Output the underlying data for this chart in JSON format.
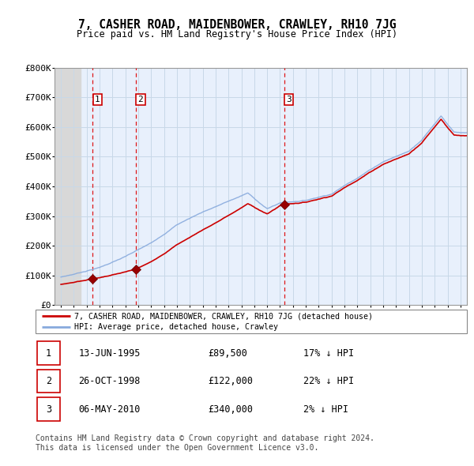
{
  "title": "7, CASHER ROAD, MAIDENBOWER, CRAWLEY, RH10 7JG",
  "subtitle": "Price paid vs. HM Land Registry's House Price Index (HPI)",
  "ylim": [
    0,
    800000
  ],
  "yticks": [
    0,
    100000,
    200000,
    300000,
    400000,
    500000,
    600000,
    700000,
    800000
  ],
  "ytick_labels": [
    "£0",
    "£100K",
    "£200K",
    "£300K",
    "£400K",
    "£500K",
    "£600K",
    "£700K",
    "£800K"
  ],
  "x_start_year": 1993,
  "x_end_year": 2025,
  "sale_times": [
    1995.46,
    1998.82,
    2010.34
  ],
  "sale_prices": [
    89500,
    122000,
    340000
  ],
  "sale_labels": [
    "1",
    "2",
    "3"
  ],
  "legend_line1": "7, CASHER ROAD, MAIDENBOWER, CRAWLEY, RH10 7JG (detached house)",
  "legend_line2": "HPI: Average price, detached house, Crawley",
  "table_rows": [
    [
      "1",
      "13-JUN-1995",
      "£89,500",
      "17% ↓ HPI"
    ],
    [
      "2",
      "26-OCT-1998",
      "£122,000",
      "22% ↓ HPI"
    ],
    [
      "3",
      "06-MAY-2010",
      "£340,000",
      "2% ↓ HPI"
    ]
  ],
  "footnote1": "Contains HM Land Registry data © Crown copyright and database right 2024.",
  "footnote2": "This data is licensed under the Open Government Licence v3.0.",
  "grid_color": "#bbccdd",
  "sale_line_color": "#cc0000",
  "sale_marker_color": "#990000",
  "hpi_line_color": "#88aadd",
  "hatch_color": "#bbbbbb"
}
